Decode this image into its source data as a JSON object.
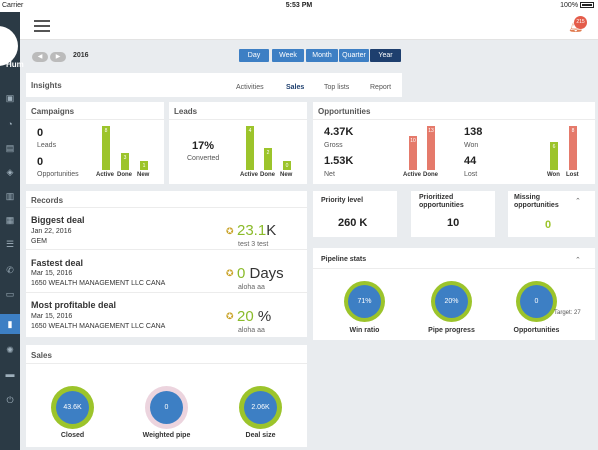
{
  "status_bar": {
    "carrier": "Carrier",
    "time": "5:53 PM",
    "battery": "100%"
  },
  "sidebar": {
    "brand": "Hum"
  },
  "header": {
    "notification_count": "215"
  },
  "date_nav": {
    "year": "2016",
    "periods": [
      "Day",
      "Week",
      "Month",
      "Quarter",
      "Year"
    ],
    "active_period": "Year"
  },
  "insights": {
    "title": "Insights",
    "tabs": [
      "Activities",
      "Sales",
      "Top lists",
      "Report"
    ],
    "active_tab": "Sales"
  },
  "campaigns": {
    "title": "Campaigns",
    "leads_value": "0",
    "leads_label": "Leads",
    "opportunities_value": "0",
    "opportunities_label": "Opportunities",
    "bars": [
      {
        "label": "Active",
        "value": "8"
      },
      {
        "label": "Done",
        "value": "3"
      },
      {
        "label": "New",
        "value": "1"
      }
    ]
  },
  "leads": {
    "title": "Leads",
    "converted_value": "17%",
    "converted_label": "Converted",
    "bars": [
      {
        "label": "Active",
        "value": "4"
      },
      {
        "label": "Done",
        "value": "2"
      },
      {
        "label": "New",
        "value": "0"
      }
    ]
  },
  "opportunities": {
    "title": "Opportunities",
    "gross_value": "4.37K",
    "gross_label": "Gross",
    "net_value": "1.53K",
    "net_label": "Net",
    "won_value": "138",
    "won_label": "Won",
    "lost_value": "44",
    "lost_label": "Lost",
    "left_bars": [
      {
        "label": "Active",
        "value": "10"
      },
      {
        "label": "Done",
        "value": "13"
      }
    ],
    "right_bars": [
      {
        "label": "Won",
        "value": "6"
      },
      {
        "label": "Lost",
        "value": "8"
      }
    ]
  },
  "records": {
    "title": "Records",
    "items": [
      {
        "title": "Biggest deal",
        "date": "Jan 22, 2016",
        "company": "GEM",
        "prefix": "23.1",
        "suffix": "K",
        "footer": "test 3 test"
      },
      {
        "title": "Fastest deal",
        "date": "Mar 15, 2016",
        "company": "1650 WEALTH MANAGEMENT LLC CANA",
        "prefix": "0",
        "suffix": " Days",
        "footer": "aloha aa"
      },
      {
        "title": "Most profitable deal",
        "date": "Mar 15, 2016",
        "company": "1650 WEALTH MANAGEMENT LLC CANA",
        "prefix": "20",
        "suffix": " %",
        "footer": "aloha aa"
      }
    ]
  },
  "priority": {
    "label": "Priority level",
    "value": "260 K"
  },
  "prioritized": {
    "label": "Prioritized opportunities",
    "value": "10"
  },
  "missing": {
    "label": "Missing opportunities",
    "value": "0"
  },
  "pipeline": {
    "title": "Pipeline stats",
    "win_ratio": {
      "value": "71%",
      "label": "Win ratio"
    },
    "pipe_progress": {
      "value": "20%",
      "label": "Pipe progress"
    },
    "opportunities": {
      "value": "0",
      "label": "Opportunities"
    },
    "target": "Target: 27"
  },
  "sales": {
    "title": "Sales",
    "closed": {
      "value": "43.6K",
      "label": "Closed"
    },
    "weighted": {
      "value": "0",
      "label": "Weighted pipe"
    },
    "deal_size": {
      "value": "2.06K",
      "label": "Deal size"
    }
  },
  "colors": {
    "accent": "#3d7fc4",
    "active_period": "#1e3f6e",
    "green": "#9cc42b",
    "red": "#e57a6b",
    "sidebar": "#2b3a45"
  }
}
